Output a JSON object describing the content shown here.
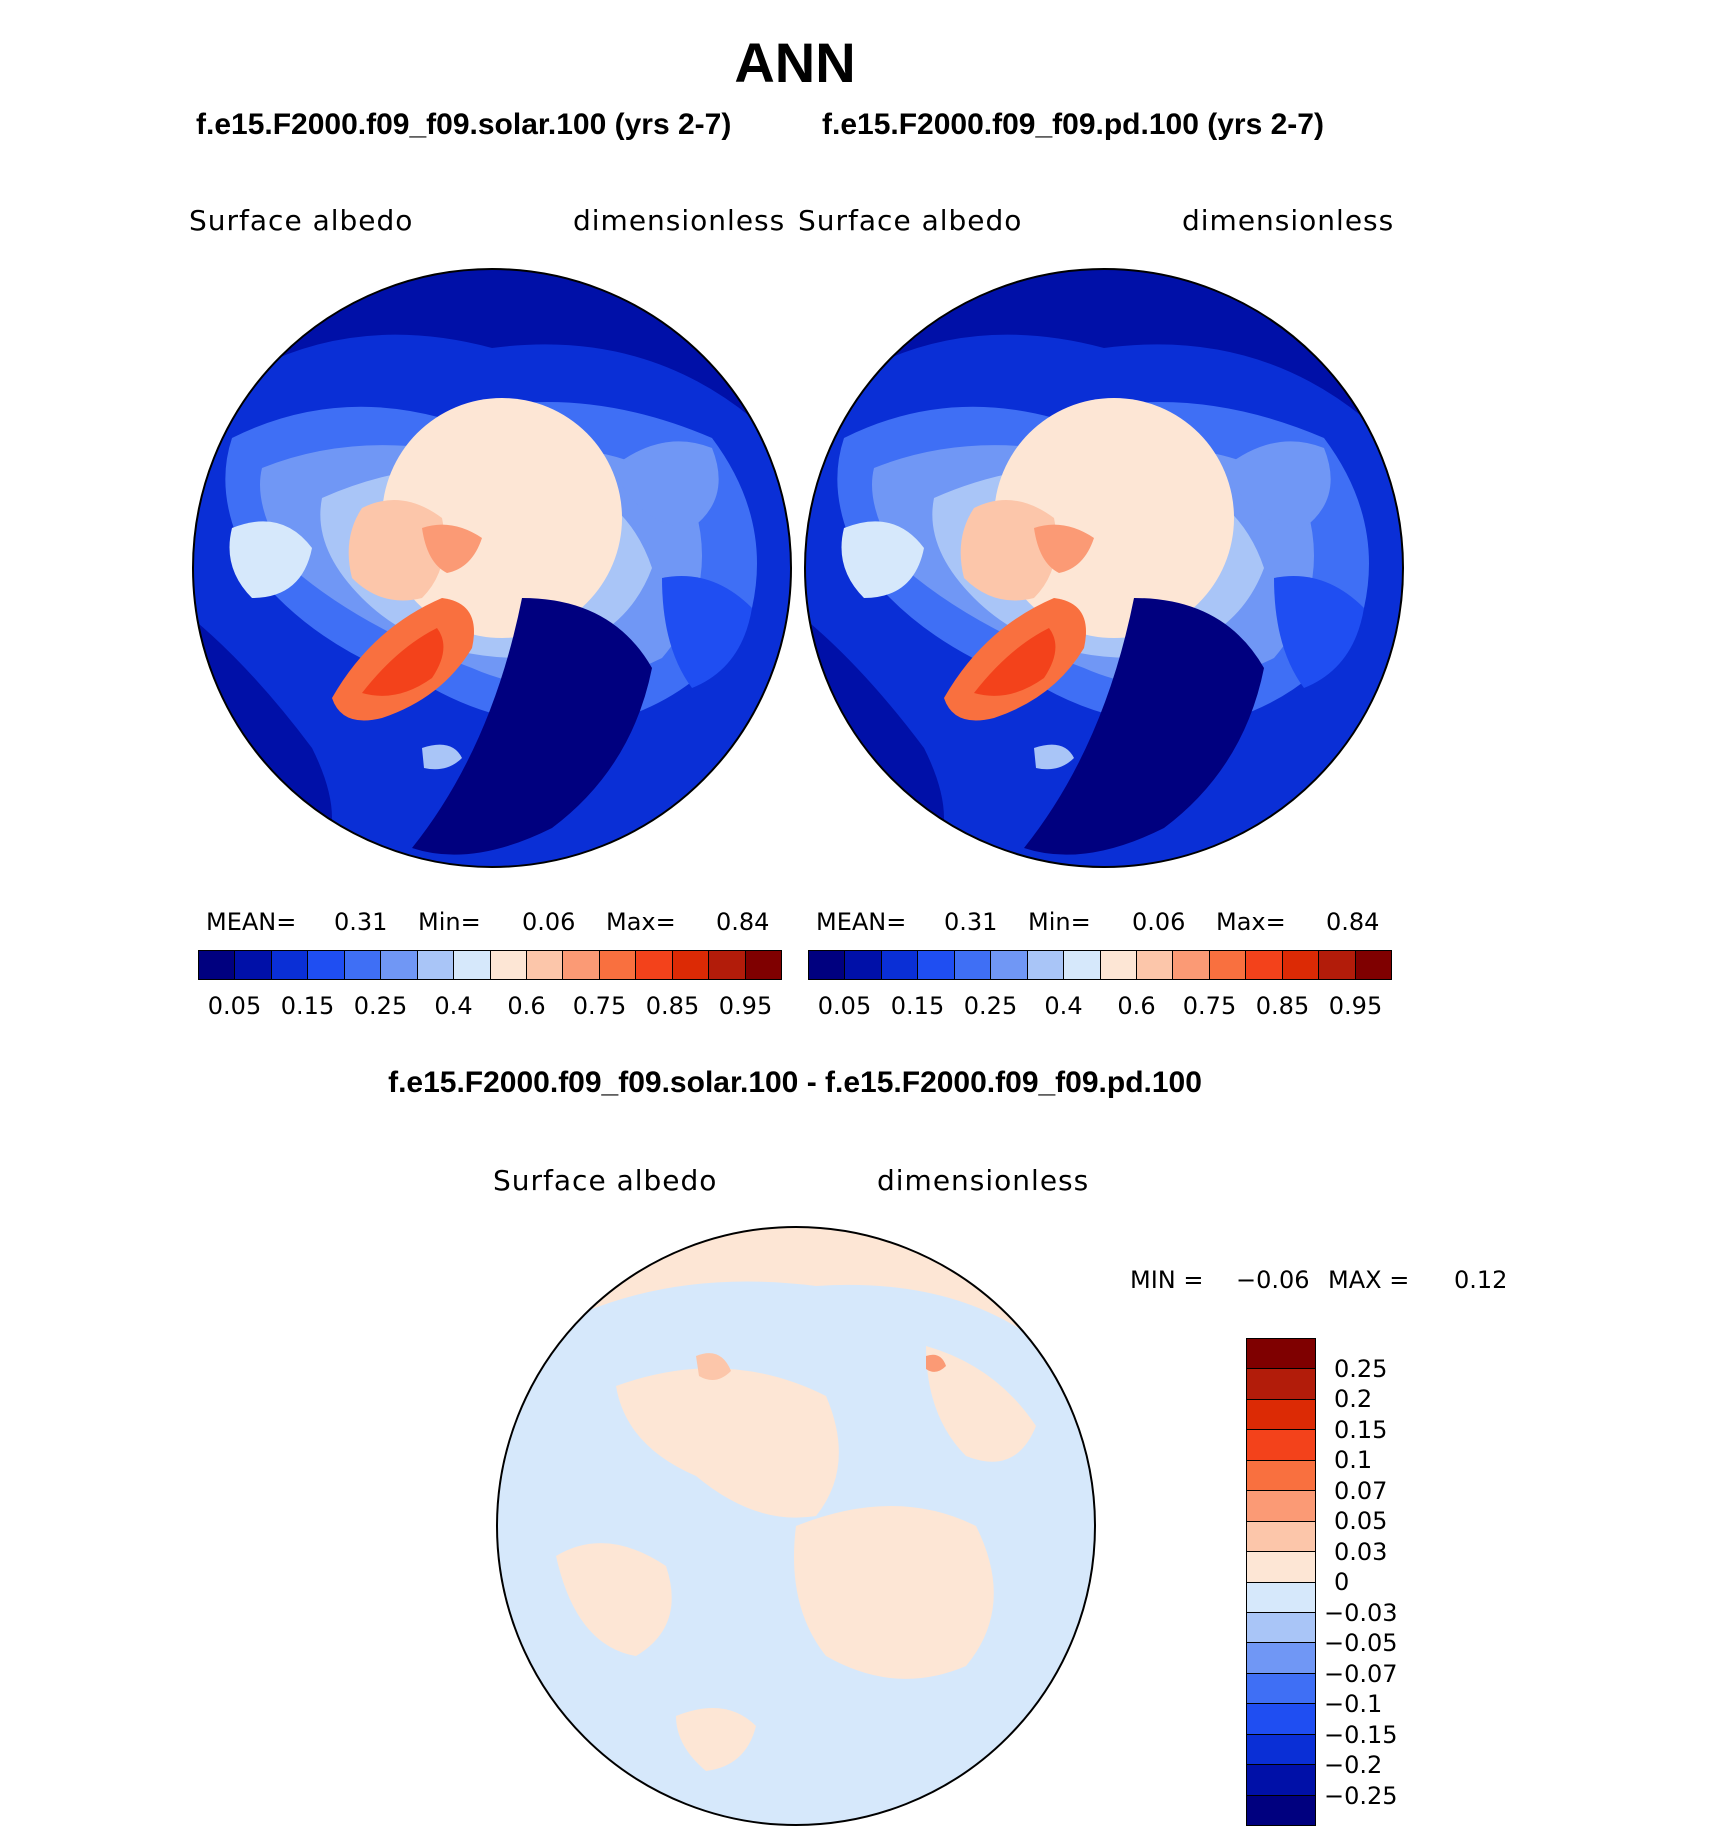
{
  "title": "ANN",
  "panels": [
    {
      "case_title": "f.e15.F2000.f09_f09.solar.100 (yrs 2-7)",
      "variable": "Surface albedo",
      "units": "dimensionless",
      "stats": {
        "mean_label": "MEAN=",
        "mean": "0.31",
        "min_label": "Min=",
        "min": "0.06",
        "max_label": "Max=",
        "max": "0.84"
      }
    },
    {
      "case_title": "f.e15.F2000.f09_f09.pd.100 (yrs 2-7)",
      "variable": "Surface albedo",
      "units": "dimensionless",
      "stats": {
        "mean_label": "MEAN=",
        "mean": "0.31",
        "min_label": "Min=",
        "min": "0.06",
        "max_label": "Max=",
        "max": "0.84"
      }
    }
  ],
  "abs_colorbar": {
    "colors": [
      "#00007f",
      "#0010a8",
      "#0a2fd6",
      "#1f4ef2",
      "#3f6ff5",
      "#7097f5",
      "#a9c5f7",
      "#d6e8fb",
      "#fde6d5",
      "#fcc6aa",
      "#fb9a75",
      "#f9703f",
      "#f3421b",
      "#dc2a05",
      "#b21c0a",
      "#7f0000"
    ],
    "ticks": [
      "0.05",
      "0.15",
      "0.25",
      "0.4",
      "0.6",
      "0.75",
      "0.85",
      "0.95"
    ]
  },
  "diff": {
    "title": "f.e15.F2000.f09_f09.solar.100 - f.e15.F2000.f09_f09.pd.100",
    "variable": "Surface albedo",
    "units": "dimensionless",
    "min_label": "MIN =",
    "min": "−0.06",
    "max_label": "MAX =",
    "max": "0.12",
    "colors": [
      "#7f0000",
      "#b21c0a",
      "#dc2a05",
      "#f3421b",
      "#f9703f",
      "#fb9a75",
      "#fcc6aa",
      "#fde6d5",
      "#d6e8fb",
      "#a9c5f7",
      "#7097f5",
      "#3f6ff5",
      "#1f4ef2",
      "#0a2fd6",
      "#0010a8",
      "#00007f"
    ],
    "ticks": [
      "0.25",
      "0.2",
      "0.15",
      "0.1",
      "0.07",
      "0.05",
      "0.03",
      "0",
      "−0.03",
      "−0.05",
      "−0.07",
      "−0.1",
      "−0.15",
      "−0.2",
      "−0.25"
    ]
  }
}
